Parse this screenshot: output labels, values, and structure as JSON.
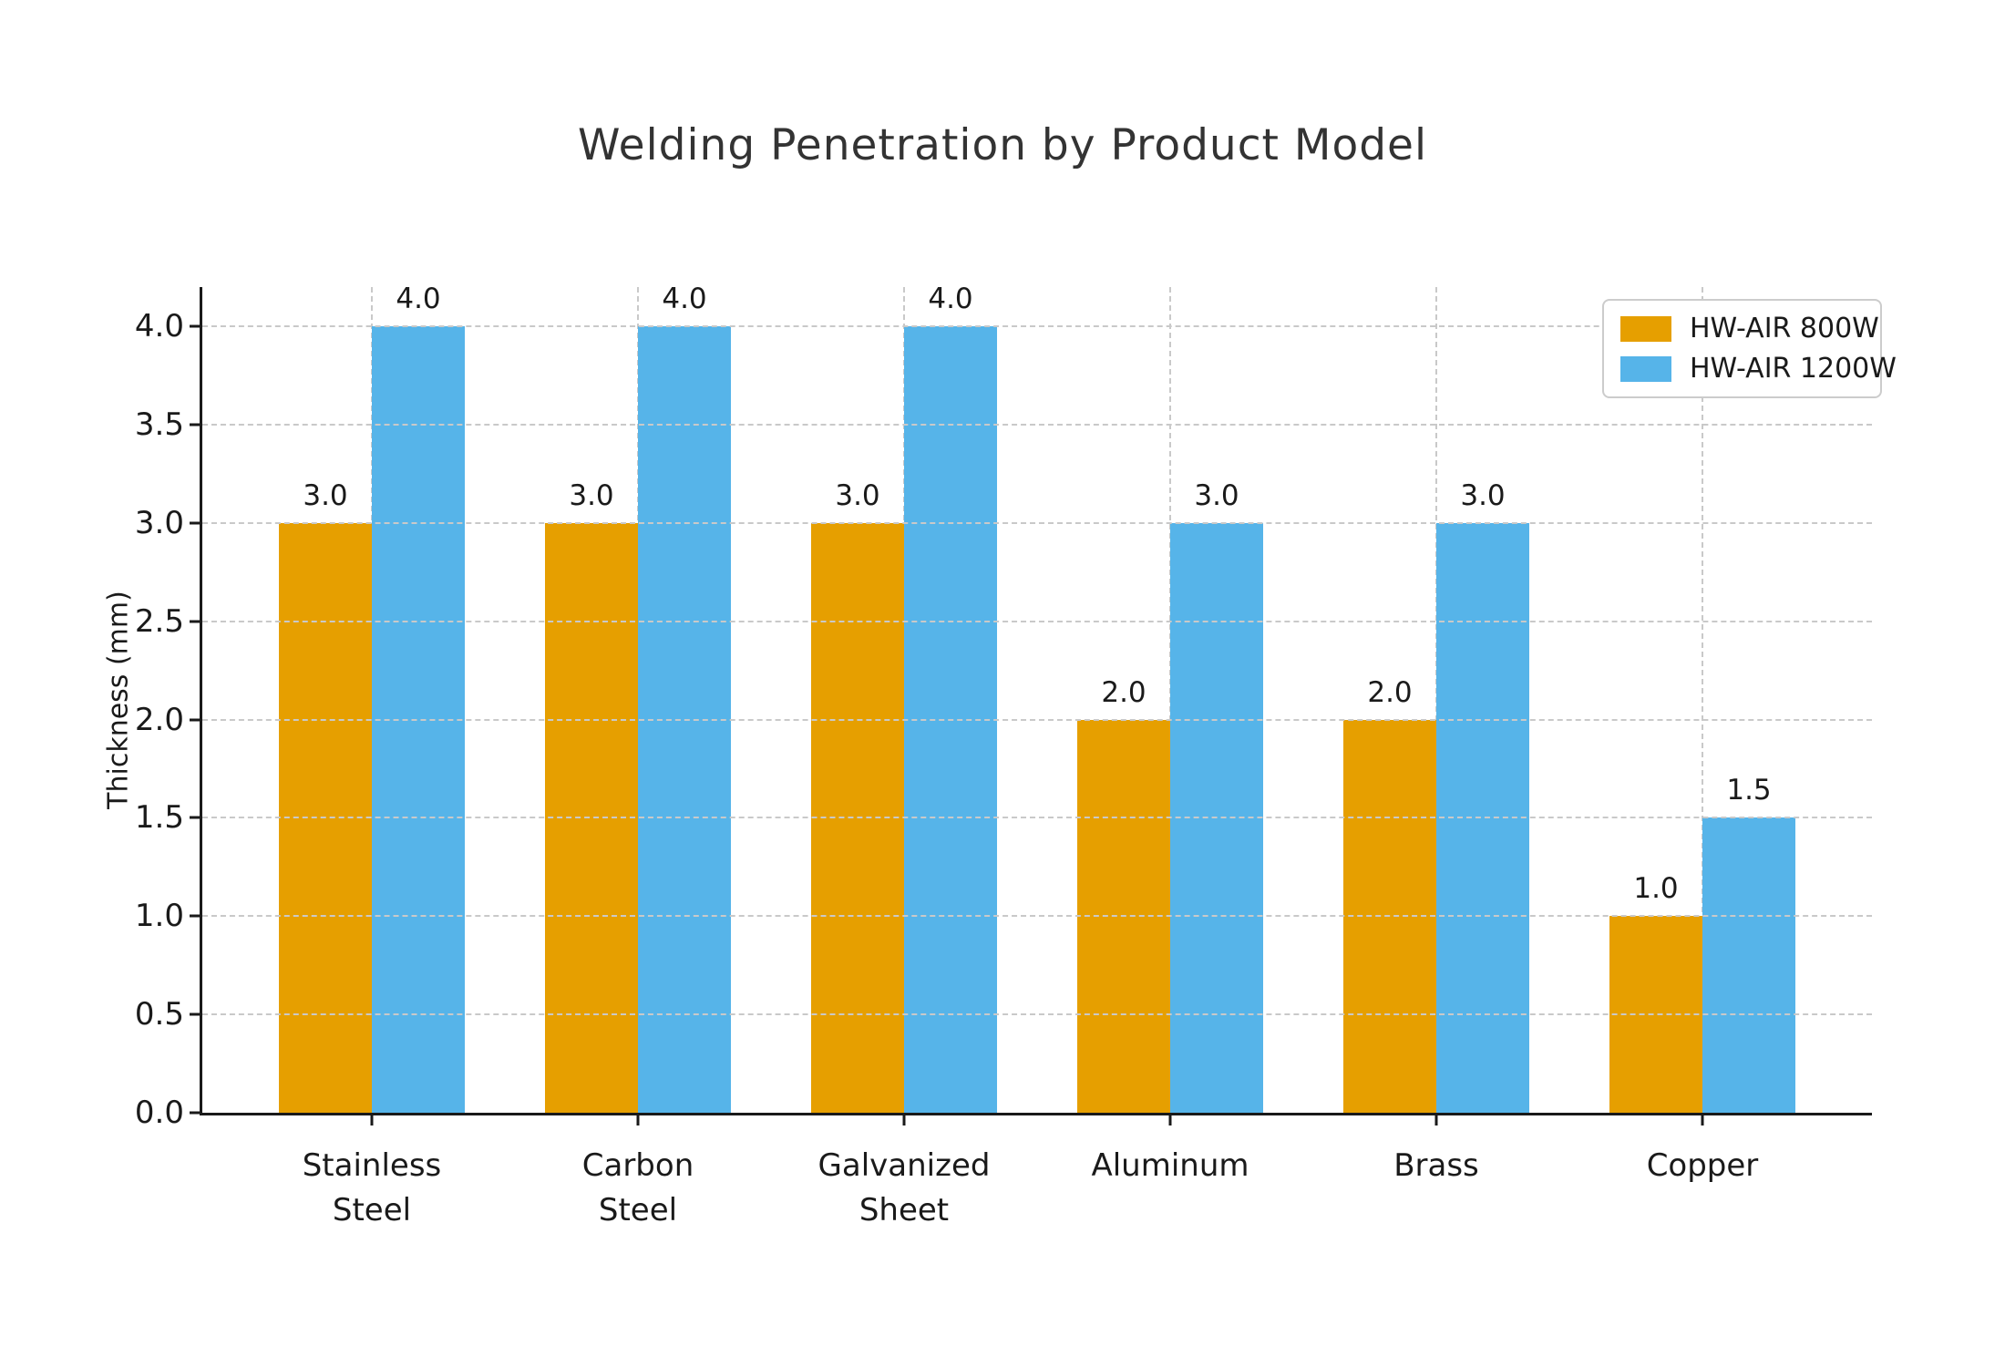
{
  "chart_data": {
    "type": "bar",
    "title": "Welding Penetration by Product Model",
    "xlabel": "",
    "ylabel": "Thickness (mm)",
    "categories": [
      "Stainless\nSteel",
      "Carbon\nSteel",
      "Galvanized\nSheet",
      "Aluminum",
      "Brass",
      "Copper"
    ],
    "series": [
      {
        "name": "HW-AIR 800W",
        "color": "#E69F00",
        "values": [
          3.0,
          3.0,
          3.0,
          2.0,
          2.0,
          1.0
        ]
      },
      {
        "name": "HW-AIR 1200W",
        "color": "#56B4E9",
        "values": [
          4.0,
          4.0,
          4.0,
          3.0,
          3.0,
          1.5
        ]
      }
    ],
    "ylim": [
      0,
      4.2
    ],
    "yticks": [
      0.0,
      0.5,
      1.0,
      1.5,
      2.0,
      2.5,
      3.0,
      3.5,
      4.0
    ],
    "ytick_labels": [
      "0.0",
      "0.5",
      "1.0",
      "1.5",
      "2.0",
      "2.5",
      "3.0",
      "3.5",
      "4.0"
    ],
    "grid": "dashed, horizontal and vertical",
    "legend_position": "upper right",
    "bar_value_labels": [
      "3.0",
      "4.0",
      "3.0",
      "4.0",
      "3.0",
      "4.0",
      "2.0",
      "3.0",
      "2.0",
      "3.0",
      "1.0",
      "1.5"
    ]
  }
}
